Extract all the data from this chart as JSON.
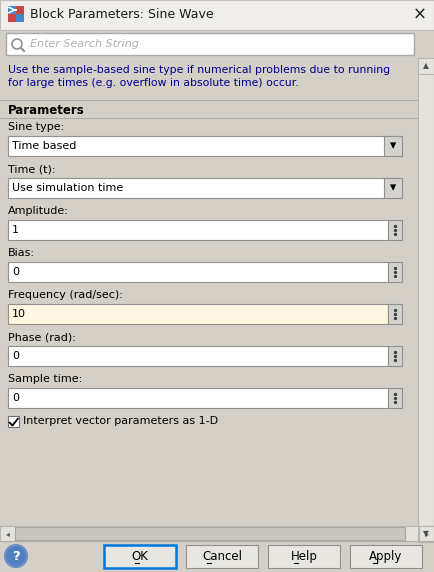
{
  "title": "Block Parameters: Sine Wave",
  "bg_color": "#d4d0c8",
  "content_bg": "#e8e6e0",
  "white": "#ffffff",
  "field_border": "#8c8c8c",
  "blue_border": "#0078d7",
  "title_bar_color": "#f0eeea",
  "search_placeholder": "Enter Search String",
  "desc_line1": "Use the sample-based sine type if numerical problems due to running",
  "desc_line2": "for large times (e.g. overflow in absolute time) occur.",
  "desc_color": "#00008b",
  "section_label": "Parameters",
  "fields": [
    {
      "label": "Sine type:",
      "type": "dropdown",
      "value": "Time based"
    },
    {
      "label": "Time (t):",
      "type": "dropdown",
      "value": "Use simulation time"
    },
    {
      "label": "Amplitude:",
      "type": "input",
      "value": "1",
      "highlight": false
    },
    {
      "label": "Bias:",
      "type": "input",
      "value": "0",
      "highlight": false
    },
    {
      "label": "Frequency (rad/sec):",
      "type": "input",
      "value": "10",
      "highlight": true
    },
    {
      "label": "Phase (rad):",
      "type": "input",
      "value": "0",
      "highlight": false
    },
    {
      "label": "Sample time:",
      "type": "input",
      "value": "0",
      "highlight": false
    }
  ],
  "checkbox_label": "Interpret vector parameters as 1-D",
  "buttons": [
    "OK",
    "Cancel",
    "Help",
    "Apply"
  ],
  "highlight_color": "#fdf6e0",
  "text_color": "#000000",
  "gray_text": "#888888",
  "separator_color": "#b0aea8",
  "scrollbar_thumb": "#c8c6c0",
  "title_text_color": "#1a1a1a"
}
